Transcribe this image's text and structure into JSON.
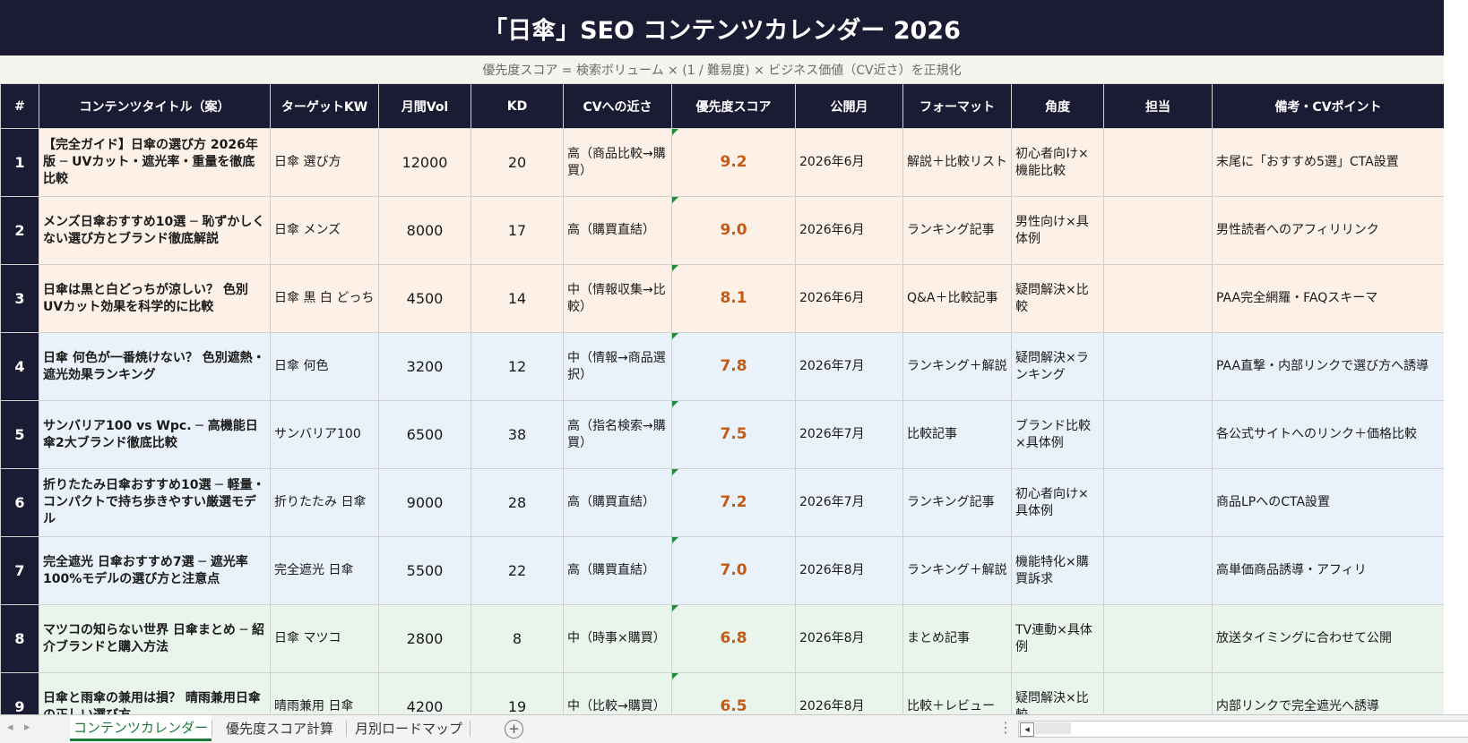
{
  "title": "「日傘」SEO コンテンツカレンダー 2026",
  "subtitle": "優先度スコア = 検索ボリューム × (1 / 難易度) × ビジネス価値（CV近さ）を正規化",
  "headers": [
    "#",
    "コンテンツタイトル（案）",
    "ターゲットKW",
    "月間Vol",
    "KD",
    "CVへの近さ",
    "優先度スコア",
    "公開月",
    "フォーマット",
    "角度",
    "担当",
    "備考・CVポイント"
  ],
  "rows": [
    {
      "num": "1",
      "title": "【完全ガイド】日傘の選び方 2026年版 ─ UVカット・遮光率・重量を徹底比較",
      "kw": "日傘 選び方",
      "vol": "12000",
      "kd": "20",
      "cv": "高（商品比較→購買）",
      "score": "9.2",
      "month": "2026年6月",
      "format": "解説＋比較リスト",
      "angle": "初心者向け×機能比較",
      "owner": "",
      "note": "末尾に「おすすめ5選」CTA設置"
    },
    {
      "num": "2",
      "title": "メンズ日傘おすすめ10選 ─ 恥ずかしくない選び方とブランド徹底解説",
      "kw": "日傘 メンズ",
      "vol": "8000",
      "kd": "17",
      "cv": "高（購買直結）",
      "score": "9.0",
      "month": "2026年6月",
      "format": "ランキング記事",
      "angle": "男性向け×具体例",
      "owner": "",
      "note": "男性読者へのアフィリリンク"
    },
    {
      "num": "3",
      "title": "日傘は黒と白どっちが涼しい？ 色別UVカット効果を科学的に比較",
      "kw": "日傘 黒 白 どっち",
      "vol": "4500",
      "kd": "14",
      "cv": "中（情報収集→比較）",
      "score": "8.1",
      "month": "2026年6月",
      "format": "Q&A＋比較記事",
      "angle": "疑問解決×比較",
      "owner": "",
      "note": "PAA完全網羅・FAQスキーマ"
    },
    {
      "num": "4",
      "title": "日傘 何色が一番焼けない？ 色別遮熱・遮光効果ランキング",
      "kw": "日傘 何色",
      "vol": "3200",
      "kd": "12",
      "cv": "中（情報→商品選択）",
      "score": "7.8",
      "month": "2026年7月",
      "format": "ランキング＋解説",
      "angle": "疑問解決×ランキング",
      "owner": "",
      "note": "PAA直撃・内部リンクで選び方へ誘導"
    },
    {
      "num": "5",
      "title": "サンバリア100 vs Wpc. ─ 高機能日傘2大ブランド徹底比較",
      "kw": "サンバリア100",
      "vol": "6500",
      "kd": "38",
      "cv": "高（指名検索→購買）",
      "score": "7.5",
      "month": "2026年7月",
      "format": "比較記事",
      "angle": "ブランド比較×具体例",
      "owner": "",
      "note": "各公式サイトへのリンク＋価格比較"
    },
    {
      "num": "6",
      "title": "折りたたみ日傘おすすめ10選 ─ 軽量・コンパクトで持ち歩きやすい厳選モデル",
      "kw": "折りたたみ 日傘",
      "vol": "9000",
      "kd": "28",
      "cv": "高（購買直結）",
      "score": "7.2",
      "month": "2026年7月",
      "format": "ランキング記事",
      "angle": "初心者向け×具体例",
      "owner": "",
      "note": "商品LPへのCTA設置"
    },
    {
      "num": "7",
      "title": "完全遮光 日傘おすすめ7選 ─ 遮光率100%モデルの選び方と注意点",
      "kw": "完全遮光 日傘",
      "vol": "5500",
      "kd": "22",
      "cv": "高（購買直結）",
      "score": "7.0",
      "month": "2026年8月",
      "format": "ランキング＋解説",
      "angle": "機能特化×購買訴求",
      "owner": "",
      "note": "高単価商品誘導・アフィリ"
    },
    {
      "num": "8",
      "title": "マツコの知らない世界 日傘まとめ ─ 紹介ブランドと購入方法",
      "kw": "日傘 マツコ",
      "vol": "2800",
      "kd": "8",
      "cv": "中（時事×購買）",
      "score": "6.8",
      "month": "2026年8月",
      "format": "まとめ記事",
      "angle": "TV連動×具体例",
      "owner": "",
      "note": "放送タイミングに合わせて公開"
    },
    {
      "num": "9",
      "title": "日傘と雨傘の兼用は損？ 晴雨兼用日傘の正しい選び方",
      "kw": "晴雨兼用 日傘",
      "vol": "4200",
      "kd": "19",
      "cv": "中（比較→購買）",
      "score": "6.5",
      "month": "2026年8月",
      "format": "比較＋レビュー",
      "angle": "疑問解決×比較",
      "owner": "",
      "note": "内部リンクで完全遮光へ誘導"
    }
  ],
  "tabs": [
    "コンテンツカレンダー",
    "優先度スコア計算",
    "月別ロードマップ"
  ],
  "active_tab": "コンテンツカレンダー",
  "colors": {
    "header": "#1b1b33",
    "score": "#c55a11",
    "tab_active": "#1e7a3a",
    "band_june": "#fdf0e7",
    "band_july": "#e9f1fa",
    "band_aug": "#e8f4ec"
  }
}
